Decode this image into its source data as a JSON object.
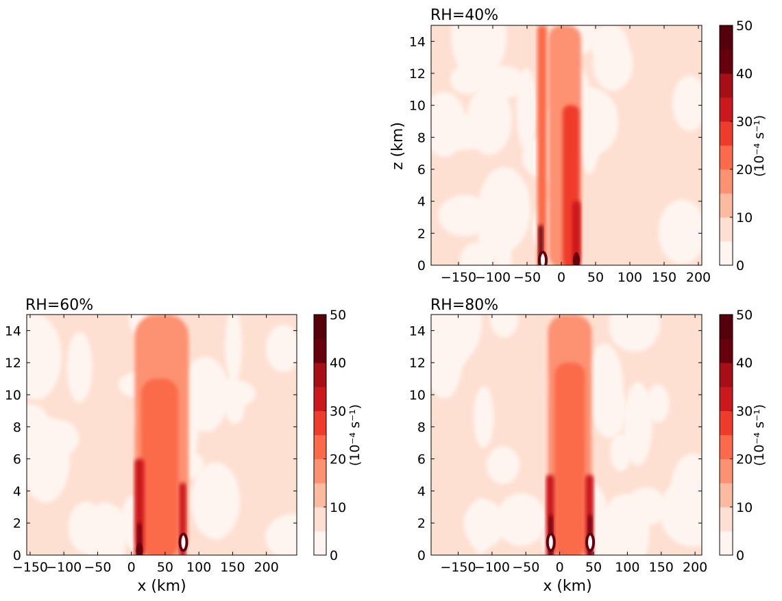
{
  "chart_data": [
    {
      "type": "heatmap",
      "title": "RH=40%",
      "xlabel": "",
      "ylabel": "z (km)",
      "xlim": [
        -190,
        205
      ],
      "ylim": [
        0,
        15
      ],
      "xticks": [
        -150,
        -100,
        -50,
        0,
        50,
        100,
        150,
        200
      ],
      "yticks": [
        0,
        2,
        4,
        6,
        8,
        10,
        12,
        14
      ],
      "colorbar": {
        "label": "(10⁻⁴ s⁻¹)",
        "ticks": [
          0,
          10,
          20,
          30,
          40,
          50
        ],
        "levels": [
          0,
          5,
          10,
          15,
          20,
          25,
          30,
          35,
          40,
          45,
          50
        ]
      },
      "columns": [
        {
          "x": -28,
          "width": 14,
          "top": 15,
          "value": 22
        },
        {
          "x": 5,
          "width": 48,
          "top": 15,
          "value": 17
        },
        {
          "x": 14,
          "width": 24,
          "top": 10,
          "value": 25
        },
        {
          "x": 22,
          "width": 12,
          "top": 4,
          "value": 33
        },
        {
          "x": -30,
          "width": 7,
          "top": 2.5,
          "value": 42
        }
      ],
      "features": [
        {
          "x": -27,
          "z": 0.3,
          "kind": "max"
        },
        {
          "x": 22,
          "z": 0.3,
          "kind": "peak"
        }
      ]
    },
    {
      "type": "heatmap",
      "title": "RH=60%",
      "xlabel": "x (km)",
      "ylabel": "",
      "xlim": [
        -155,
        245
      ],
      "ylim": [
        0,
        15
      ],
      "xticks": [
        -150,
        -100,
        -50,
        0,
        50,
        100,
        150,
        200
      ],
      "yticks": [
        0,
        2,
        4,
        6,
        8,
        10,
        12,
        14
      ],
      "colorbar": {
        "label": "(10⁻⁴ s⁻¹)",
        "ticks": [
          0,
          10,
          20,
          30,
          40,
          50
        ],
        "levels": [
          0,
          5,
          10,
          15,
          20,
          25,
          30,
          35,
          40,
          45,
          50
        ]
      },
      "columns": [
        {
          "x": 45,
          "width": 80,
          "top": 15,
          "value": 17
        },
        {
          "x": 42,
          "width": 55,
          "top": 11,
          "value": 22
        },
        {
          "x": 12,
          "width": 14,
          "top": 6,
          "value": 30
        },
        {
          "x": 76,
          "width": 10,
          "top": 4.5,
          "value": 30
        },
        {
          "x": 12,
          "width": 6,
          "top": 2,
          "value": 42
        }
      ],
      "features": [
        {
          "x": 12,
          "z": 0.3,
          "kind": "peak"
        },
        {
          "x": 77,
          "z": 0.8,
          "kind": "max"
        }
      ]
    },
    {
      "type": "heatmap",
      "title": "RH=80%",
      "xlabel": "x (km)",
      "ylabel": "",
      "xlim": [
        -190,
        210
      ],
      "ylim": [
        0,
        15
      ],
      "xticks": [
        -150,
        -100,
        -50,
        0,
        50,
        100,
        150,
        200
      ],
      "yticks": [
        0,
        2,
        4,
        6,
        8,
        10,
        12,
        14
      ],
      "colorbar": {
        "label": "(10⁻⁴ s⁻¹)",
        "ticks": [
          0,
          10,
          20,
          30,
          40,
          50
        ],
        "levels": [
          0,
          5,
          10,
          15,
          20,
          25,
          30,
          35,
          40,
          45,
          50
        ]
      },
      "columns": [
        {
          "x": 15,
          "width": 65,
          "top": 15,
          "value": 17
        },
        {
          "x": 15,
          "width": 45,
          "top": 12,
          "value": 24
        },
        {
          "x": -14,
          "width": 12,
          "top": 5,
          "value": 33
        },
        {
          "x": 44,
          "width": 12,
          "top": 5,
          "value": 33
        },
        {
          "x": -13,
          "width": 6,
          "top": 2.5,
          "value": 44
        },
        {
          "x": 45,
          "width": 6,
          "top": 2.5,
          "value": 44
        }
      ],
      "features": [
        {
          "x": -13,
          "z": 0.8,
          "kind": "max"
        },
        {
          "x": 45,
          "z": 0.8,
          "kind": "max"
        }
      ]
    }
  ],
  "colors": {
    "levels": [
      "#fff5f0",
      "#fee0d2",
      "#fcbba1",
      "#fc9272",
      "#fb6a4a",
      "#ef3b2c",
      "#cb181d",
      "#a50f15",
      "#67000d",
      "#55000a"
    ]
  }
}
